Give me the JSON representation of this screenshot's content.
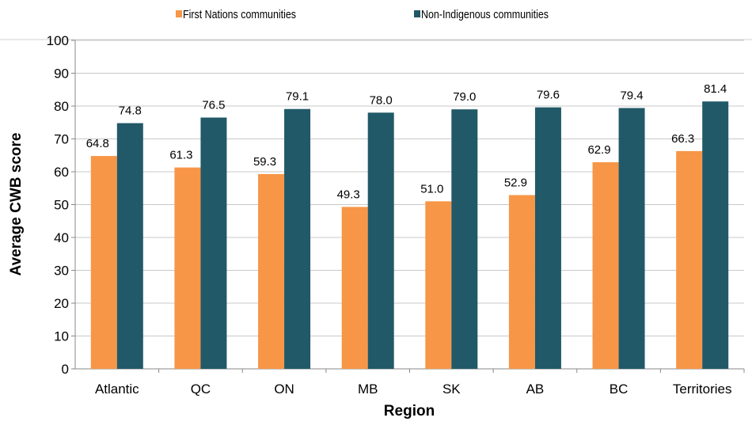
{
  "chart_data": {
    "type": "bar",
    "title": "",
    "xlabel": "Region",
    "ylabel": "Average CWB score",
    "ylim": [
      0,
      100
    ],
    "yticks": [
      0,
      10,
      20,
      30,
      40,
      50,
      60,
      70,
      80,
      90,
      100
    ],
    "grid": true,
    "legend_position": "top",
    "categories": [
      "Atlantic",
      "QC",
      "ON",
      "MB",
      "SK",
      "AB",
      "BC",
      "Territories"
    ],
    "series": [
      {
        "name": "First Nations communities",
        "color": "#F79646",
        "values": [
          64.8,
          61.3,
          59.3,
          49.3,
          51.0,
          52.9,
          62.9,
          66.3
        ]
      },
      {
        "name": "Non-Indigenous communities",
        "color": "#215968",
        "values": [
          74.8,
          76.5,
          79.1,
          78.0,
          79.0,
          79.6,
          79.4,
          81.4
        ]
      }
    ]
  }
}
